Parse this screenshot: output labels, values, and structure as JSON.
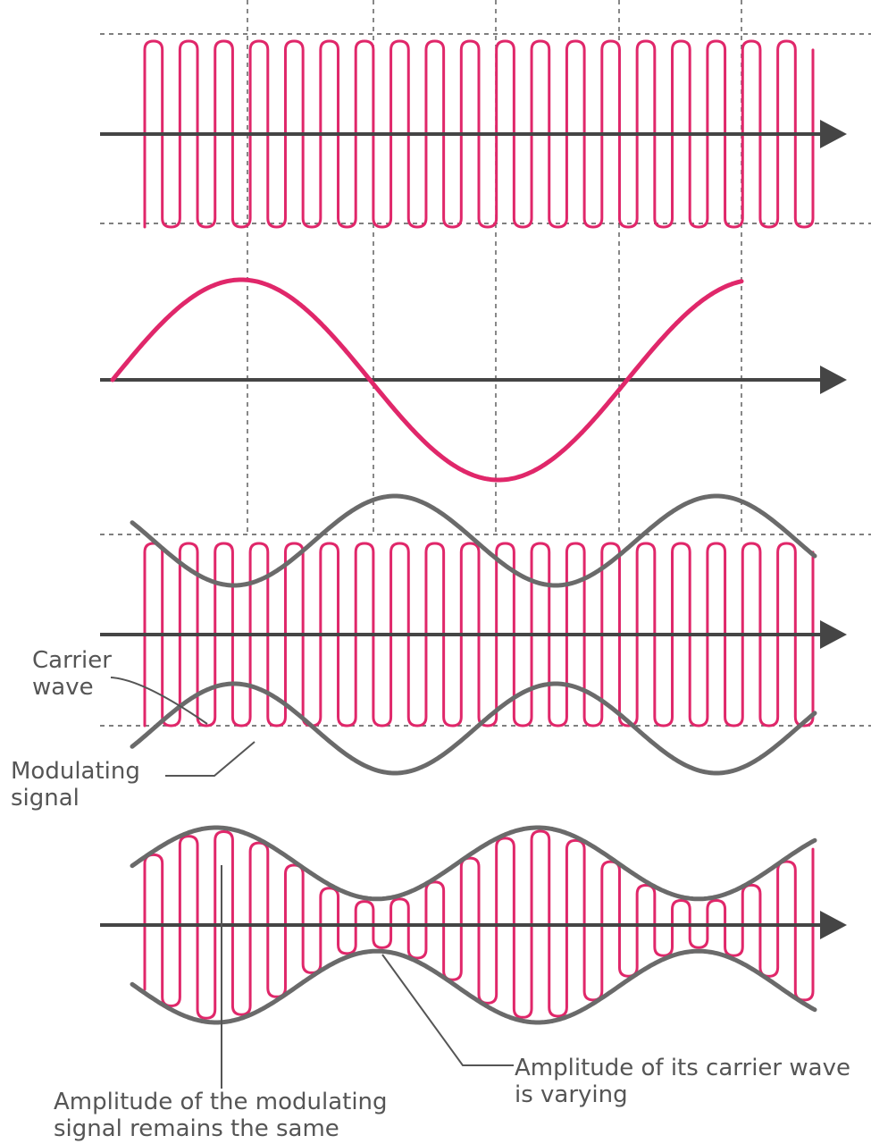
{
  "colors": {
    "carrier": "#e0276a",
    "envelope": "#6a6a6a",
    "axis": "#454545",
    "guides": "#555555",
    "text": "#555555"
  },
  "labels": {
    "carrier_wave": [
      "Carrier",
      "wave"
    ],
    "modulating_signal": [
      "Modulating",
      "signal"
    ],
    "modulating_amplitude": [
      "Amplitude of the modulating",
      "signal remains the same"
    ],
    "carrier_amplitude": [
      "Amplitude of its carrier wave",
      "is varying"
    ]
  }
}
